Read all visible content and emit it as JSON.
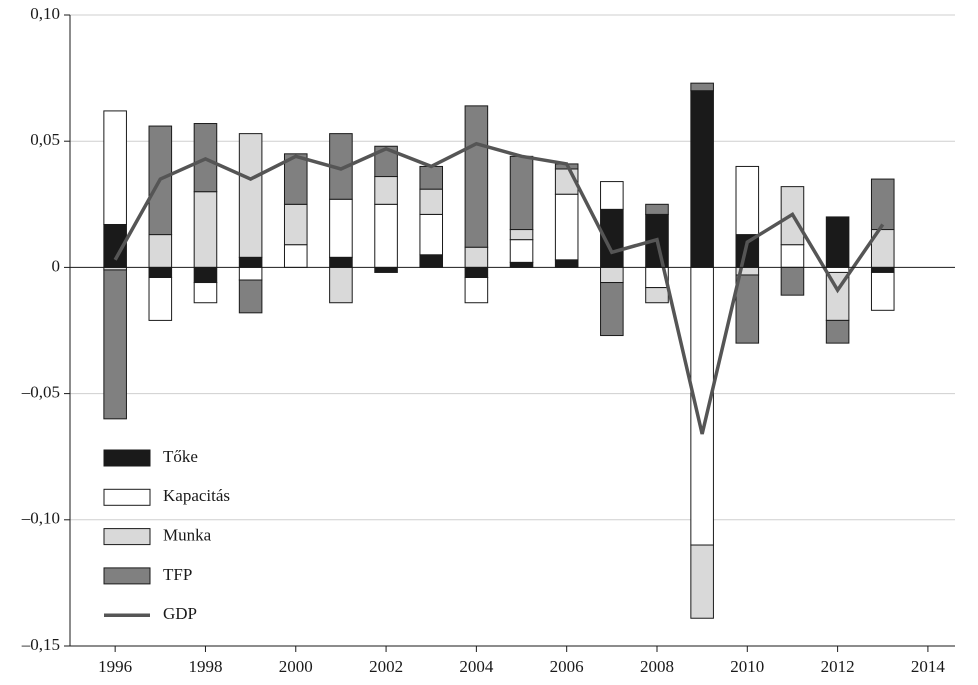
{
  "chart_data": {
    "type": "stacked-bar-line",
    "x": [
      1996,
      1997,
      1998,
      1999,
      2000,
      2001,
      2002,
      2003,
      2004,
      2005,
      2006,
      2007,
      2008,
      2009,
      2010,
      2011,
      2012,
      2013
    ],
    "series": [
      {
        "name": "Tőke",
        "color": "#1a1a1a",
        "values": [
          0.017,
          -0.004,
          -0.006,
          0.004,
          0,
          0.004,
          -0.002,
          0.005,
          -0.004,
          0.002,
          0.003,
          0.023,
          0.021,
          0.07,
          0.013,
          0,
          0.02,
          -0.002
        ]
      },
      {
        "name": "Kapacitás",
        "color": "#ffffff",
        "values": [
          0.045,
          -0.017,
          -0.008,
          -0.005,
          0.009,
          0.023,
          0.025,
          0.016,
          -0.01,
          0.009,
          0.026,
          0.011,
          -0.008,
          -0.11,
          0.027,
          0.009,
          -0.002,
          -0.015
        ]
      },
      {
        "name": "Munka",
        "color": "#d9d9d9",
        "values": [
          -0.001,
          0.013,
          0.03,
          0.049,
          0.016,
          -0.014,
          0.011,
          0.01,
          0.008,
          0.004,
          0.01,
          -0.006,
          -0.006,
          -0.029,
          -0.003,
          0.023,
          -0.019,
          0.015
        ]
      },
      {
        "name": "TFP",
        "color": "#808080",
        "values": [
          -0.059,
          0.043,
          0.027,
          -0.013,
          0.02,
          0.026,
          0.012,
          0.009,
          0.056,
          0.029,
          0.002,
          -0.021,
          0.004,
          0.003,
          -0.027,
          -0.011,
          -0.009,
          0.02
        ]
      },
      {
        "name": "GDP",
        "color": "#555555",
        "kind": "line",
        "values": [
          0.003,
          0.035,
          0.043,
          0.035,
          0.044,
          0.039,
          0.047,
          0.04,
          0.049,
          0.044,
          0.041,
          0.006,
          0.011,
          -0.066,
          0.01,
          0.021,
          -0.009,
          0.017
        ]
      }
    ],
    "xlim": [
      1995,
      2014.6
    ],
    "xticks": [
      1996,
      1998,
      2000,
      2002,
      2004,
      2006,
      2008,
      2010,
      2012,
      2014
    ],
    "ylim": [
      -0.15,
      0.1
    ],
    "yticks": [
      {
        "value": -0.15,
        "label": "–0,15"
      },
      {
        "value": -0.1,
        "label": "–0,10"
      },
      {
        "value": -0.05,
        "label": "–0,05"
      },
      0,
      {
        "value": 0.05,
        "label": "0,05"
      },
      {
        "value": 0.1,
        "label": "0,10"
      }
    ],
    "grid": true,
    "legend": "lower left"
  }
}
